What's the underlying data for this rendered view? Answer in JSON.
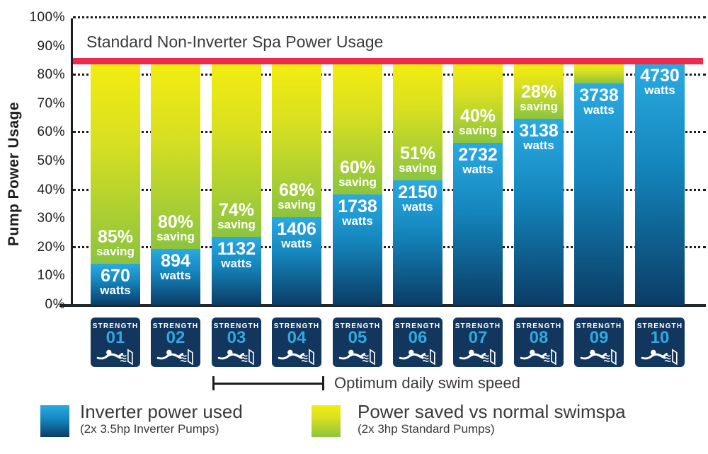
{
  "chart_data": {
    "type": "bar",
    "stacked": true,
    "ylabel": "Pump Power Usage",
    "ylim": [
      0,
      100
    ],
    "y_ticks": [
      {
        "pct": 100,
        "label": "100%"
      },
      {
        "pct": 90,
        "label": "90%"
      },
      {
        "pct": 80,
        "label": "80%"
      },
      {
        "pct": 70,
        "label": "70%"
      },
      {
        "pct": 60,
        "label": "60%"
      },
      {
        "pct": 50,
        "label": "50%"
      },
      {
        "pct": 40,
        "label": "40%"
      },
      {
        "pct": 30,
        "label": "30%"
      },
      {
        "pct": 20,
        "label": "20%"
      },
      {
        "pct": 10,
        "label": "10%"
      },
      {
        "pct": 0,
        "label": "0%"
      }
    ],
    "gridlines_pct": [
      100,
      80,
      60,
      40,
      20
    ],
    "reference_line": {
      "label": "Standard Non-Inverter Spa Power Usage",
      "value_pct": 85,
      "color": "#ed2b50"
    },
    "stack_top_pct": 84,
    "strength_word": "STRENGTH",
    "units": {
      "watts": "watts",
      "saving": "saving"
    },
    "bars": [
      {
        "strength": "01",
        "watts": "670",
        "saving": "85%",
        "used_pct": 14.2
      },
      {
        "strength": "02",
        "watts": "894",
        "saving": "80%",
        "used_pct": 19.5
      },
      {
        "strength": "03",
        "watts": "1132",
        "saving": "74%",
        "used_pct": 23.7
      },
      {
        "strength": "04",
        "watts": "1406",
        "saving": "68%",
        "used_pct": 30.6
      },
      {
        "strength": "05",
        "watts": "1738",
        "saving": "60%",
        "used_pct": 38.4
      },
      {
        "strength": "06",
        "watts": "2150",
        "saving": "51%",
        "used_pct": 43.3
      },
      {
        "strength": "07",
        "watts": "2732",
        "saving": "40%",
        "used_pct": 56.3
      },
      {
        "strength": "08",
        "watts": "3138",
        "saving": "28%",
        "used_pct": 64.7
      },
      {
        "strength": "09",
        "watts": "3738",
        "saving": null,
        "used_pct": 77.2
      },
      {
        "strength": "10",
        "watts": "4730",
        "saving": null,
        "used_pct": 84.0
      }
    ],
    "x_annotation": {
      "label": "Optimum daily swim speed",
      "span_strengths": [
        "03",
        "04"
      ]
    },
    "legend": [
      {
        "label": "Inverter power used",
        "sublabel": "(2x 3.5hp Inverter Pumps)",
        "color_top": "#2baae2",
        "color_bottom": "#0b3d66"
      },
      {
        "label": "Power saved vs normal swimspa",
        "sublabel": "(2x 3hp Standard Pumps)",
        "color_top": "#f3ec10",
        "color_bottom": "#8cc43f"
      }
    ],
    "colors": {
      "inverter_blue_top": "#2baae2",
      "inverter_blue_bottom": "#0b3d66",
      "saved_yellow_top": "#f3ec10",
      "saved_green_bottom": "#8cc43f",
      "reference_red": "#ed2b50",
      "strength_box_navy": "#12365e",
      "strength_number_blue": "#2fa9e1",
      "axis_black": "#1d1d1b"
    }
  }
}
